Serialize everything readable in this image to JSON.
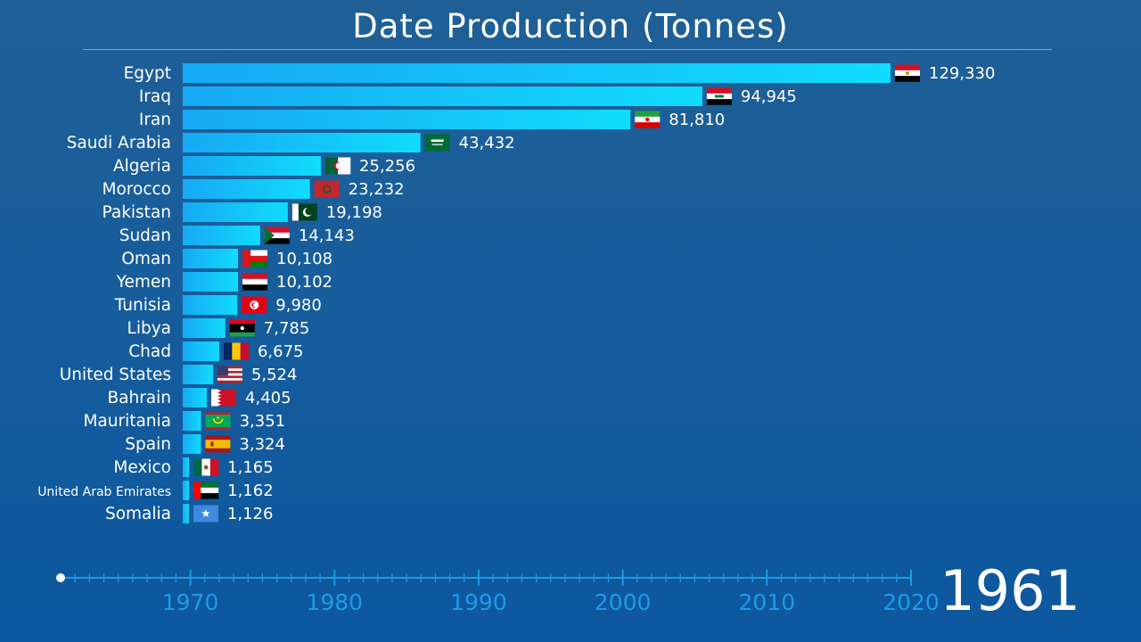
{
  "title": "Date Production (Tonnes)",
  "current_year": "1961",
  "colors": {
    "bar_start": "#17a9f4",
    "bar_end": "#10dcfb",
    "timeline": "#1d9be8",
    "label": "#ffffff"
  },
  "timeline": {
    "start": 1961,
    "end": 2020,
    "ticks": [
      "1970",
      "1980",
      "1990",
      "2000",
      "2010",
      "2020"
    ]
  },
  "chart_data": {
    "type": "bar",
    "orientation": "horizontal",
    "title": "Date Production (Tonnes)",
    "xlim": [
      0,
      129330
    ],
    "categories": [
      "Egypt",
      "Iraq",
      "Iran",
      "Saudi Arabia",
      "Algeria",
      "Morocco",
      "Pakistan",
      "Sudan",
      "Oman",
      "Yemen",
      "Tunisia",
      "Libya",
      "Chad",
      "United States",
      "Bahrain",
      "Mauritania",
      "Spain",
      "Mexico",
      "United Arab Emirates",
      "Somalia"
    ],
    "values": [
      129330,
      94945,
      81810,
      43432,
      25256,
      23232,
      19198,
      14143,
      10108,
      10102,
      9980,
      7785,
      6675,
      5524,
      4405,
      3351,
      3324,
      1165,
      1162,
      1126
    ],
    "value_labels": [
      "129,330",
      "94,945",
      "81,810",
      "43,432",
      "25,256",
      "23,232",
      "19,198",
      "14,143",
      "10,108",
      "10,102",
      "9,980",
      "7,785",
      "6,675",
      "5,524",
      "4,405",
      "3,351",
      "3,324",
      "1,165",
      "1,162",
      "1,126"
    ],
    "flags": [
      "egypt-flag",
      "iraq-flag",
      "iran-flag",
      "saudi-arabia-flag",
      "algeria-flag",
      "morocco-flag",
      "pakistan-flag",
      "sudan-flag",
      "oman-flag",
      "yemen-flag",
      "tunisia-flag",
      "libya-flag",
      "chad-flag",
      "united-states-flag",
      "bahrain-flag",
      "mauritania-flag",
      "spain-flag",
      "mexico-flag",
      "united-arab-emirates-flag",
      "somalia-flag"
    ]
  }
}
